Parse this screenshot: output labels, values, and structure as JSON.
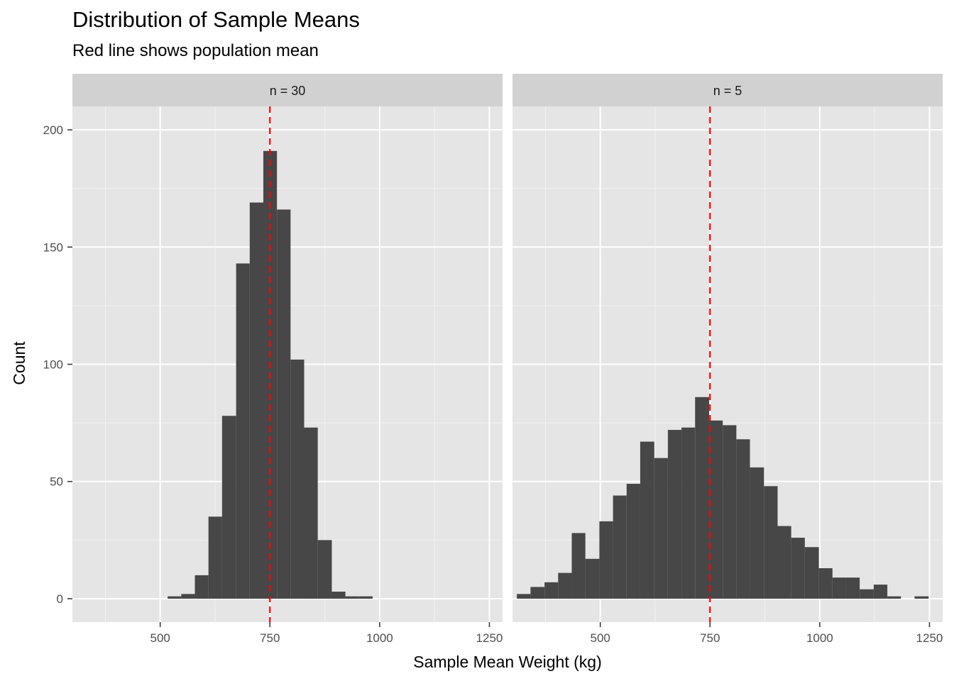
{
  "chart_data": {
    "type": "bar",
    "title": "Distribution of Sample Means",
    "subtitle": "Red line shows population mean",
    "xlabel": "Sample Mean Weight (kg)",
    "ylabel": "Count",
    "xlim": [
      300,
      1280
    ],
    "ylim": [
      -10,
      210
    ],
    "x_ticks": [
      "500",
      "750",
      "1000",
      "1250"
    ],
    "x_tick_values": [
      500,
      750,
      1000,
      1250
    ],
    "y_ticks": [
      "0",
      "50",
      "100",
      "150",
      "200"
    ],
    "y_tick_values": [
      0,
      50,
      100,
      150,
      200
    ],
    "reference_line": {
      "x": 750,
      "color": "#ff0000",
      "style": "dashed"
    },
    "bar_color": "#474747",
    "panel_background": "#e5e5e5",
    "strip_background": "#d1d1d1",
    "bin_width": 31.2,
    "grid": true,
    "facets": [
      {
        "label": "n = 30",
        "bins": [
          {
            "x0": 517,
            "x1": 548,
            "count": 1
          },
          {
            "x0": 548,
            "x1": 579,
            "count": 2
          },
          {
            "x0": 579,
            "x1": 610,
            "count": 10
          },
          {
            "x0": 610,
            "x1": 641,
            "count": 35
          },
          {
            "x0": 641,
            "x1": 673,
            "count": 78
          },
          {
            "x0": 673,
            "x1": 704,
            "count": 143
          },
          {
            "x0": 704,
            "x1": 735,
            "count": 169
          },
          {
            "x0": 735,
            "x1": 766,
            "count": 191
          },
          {
            "x0": 766,
            "x1": 797,
            "count": 166
          },
          {
            "x0": 797,
            "x1": 828,
            "count": 102
          },
          {
            "x0": 828,
            "x1": 859,
            "count": 73
          },
          {
            "x0": 859,
            "x1": 891,
            "count": 25
          },
          {
            "x0": 891,
            "x1": 922,
            "count": 3
          },
          {
            "x0": 922,
            "x1": 953,
            "count": 1
          },
          {
            "x0": 953,
            "x1": 984,
            "count": 1
          }
        ]
      },
      {
        "label": "n = 5",
        "bins": [
          {
            "x0": 310,
            "x1": 341,
            "count": 2
          },
          {
            "x0": 341,
            "x1": 373,
            "count": 5
          },
          {
            "x0": 373,
            "x1": 404,
            "count": 7
          },
          {
            "x0": 404,
            "x1": 435,
            "count": 11
          },
          {
            "x0": 435,
            "x1": 466,
            "count": 28
          },
          {
            "x0": 466,
            "x1": 498,
            "count": 17
          },
          {
            "x0": 498,
            "x1": 529,
            "count": 33
          },
          {
            "x0": 529,
            "x1": 560,
            "count": 44
          },
          {
            "x0": 560,
            "x1": 591,
            "count": 49
          },
          {
            "x0": 591,
            "x1": 623,
            "count": 67
          },
          {
            "x0": 623,
            "x1": 654,
            "count": 60
          },
          {
            "x0": 654,
            "x1": 685,
            "count": 72
          },
          {
            "x0": 685,
            "x1": 716,
            "count": 73
          },
          {
            "x0": 716,
            "x1": 748,
            "count": 86
          },
          {
            "x0": 748,
            "x1": 779,
            "count": 76
          },
          {
            "x0": 779,
            "x1": 810,
            "count": 74
          },
          {
            "x0": 810,
            "x1": 841,
            "count": 68
          },
          {
            "x0": 841,
            "x1": 873,
            "count": 56
          },
          {
            "x0": 873,
            "x1": 904,
            "count": 48
          },
          {
            "x0": 904,
            "x1": 935,
            "count": 31
          },
          {
            "x0": 935,
            "x1": 966,
            "count": 26
          },
          {
            "x0": 966,
            "x1": 998,
            "count": 22
          },
          {
            "x0": 998,
            "x1": 1029,
            "count": 13
          },
          {
            "x0": 1029,
            "x1": 1060,
            "count": 9
          },
          {
            "x0": 1060,
            "x1": 1091,
            "count": 9
          },
          {
            "x0": 1091,
            "x1": 1123,
            "count": 4
          },
          {
            "x0": 1123,
            "x1": 1154,
            "count": 6
          },
          {
            "x0": 1154,
            "x1": 1185,
            "count": 1
          },
          {
            "x0": 1185,
            "x1": 1216,
            "count": 0
          },
          {
            "x0": 1216,
            "x1": 1248,
            "count": 1
          }
        ]
      }
    ]
  }
}
